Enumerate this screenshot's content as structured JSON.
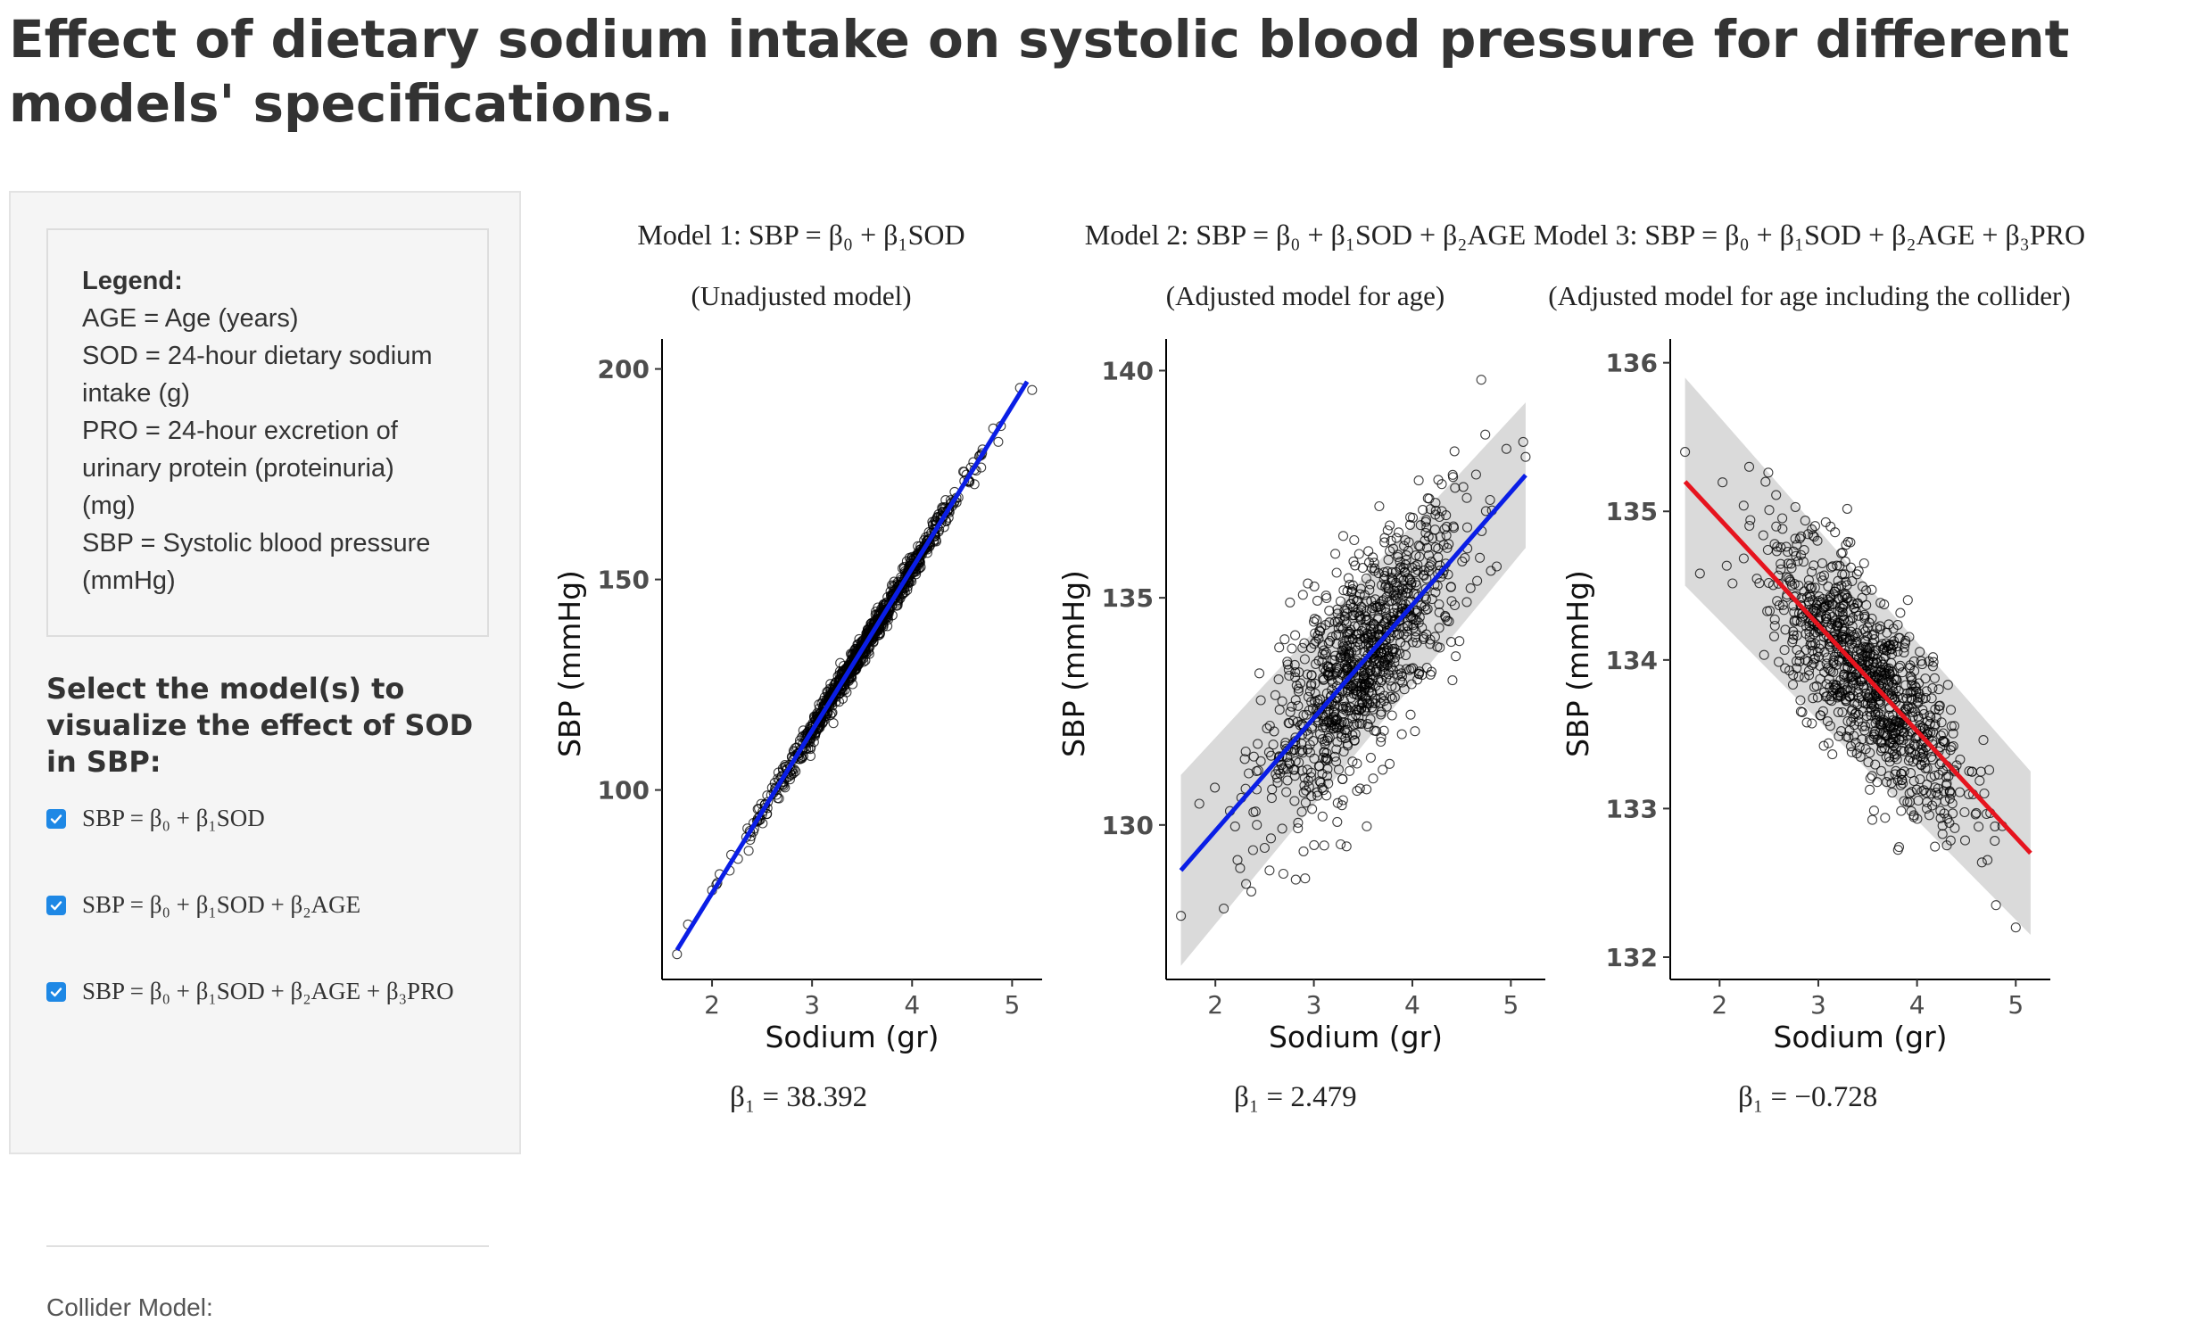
{
  "page": {
    "title": "Effect of dietary sodium intake on systolic blood pressure for different models' specifications."
  },
  "sidebar": {
    "legend": {
      "heading": "Legend:",
      "lines": [
        "AGE = Age (years)",
        "SOD = 24-hour dietary sodium",
        "intake (g)",
        "PRO = 24-hour excretion of",
        "urinary protein (proteinuria)",
        "(mg)",
        "SBP = Systolic blood pressure",
        "(mmHg)"
      ]
    },
    "select_heading": "Select the model(s) to visualize the effect of SOD in SBP:",
    "checkboxes": [
      {
        "label": "SBP = β₀ + β₁SOD",
        "checked": true
      },
      {
        "label": "SBP = β₀ + β₁SOD + β₂AGE",
        "checked": true
      },
      {
        "label": "SBP = β₀ + β₁SOD + β₂AGE + β₃PRO",
        "checked": true
      }
    ],
    "collider_label": "Collider Model:"
  },
  "colors": {
    "checkbox": "#1e88e5",
    "model1_line": "#0a1ee6",
    "model2_line": "#0a1ee6",
    "model3_line": "#e6141e",
    "ribbon": "#d4d4d4"
  },
  "chart_data": [
    {
      "type": "scatter",
      "title": "Model 1: SBP = β₀ + β₁SOD",
      "subtitle": "(Unadjusted model)",
      "xlabel": "Sodium (gr)",
      "ylabel": "SBP (mmHg)",
      "xlim": [
        1.5,
        5.3
      ],
      "ylim": [
        55,
        205
      ],
      "xticks": [
        2,
        3,
        4,
        5
      ],
      "yticks": [
        100,
        150,
        200
      ],
      "fit": {
        "x": [
          1.65,
          5.15
        ],
        "y": [
          62,
          197
        ]
      },
      "band_halfwidth": [
        0.3,
        0.3
      ],
      "point_count": 1000,
      "noise_sd": 1.6,
      "outliers": [
        [
          1.65,
          61
        ],
        [
          5.2,
          195
        ],
        [
          4.7,
          180
        ]
      ],
      "beta_label": "β₁ = 38.392"
    },
    {
      "type": "scatter",
      "title": "Model 2: SBP = β₀ + β₁SOD + β₂AGE",
      "subtitle": "(Adjusted model for age)",
      "xlabel": "Sodium (gr)",
      "ylabel": "SBP (mmHg)",
      "xlim": [
        1.5,
        5.35
      ],
      "ylim": [
        126.6,
        140.5
      ],
      "xticks": [
        2,
        3,
        4,
        5
      ],
      "yticks": [
        130,
        135,
        140
      ],
      "fit": {
        "x": [
          1.65,
          5.15
        ],
        "y": [
          129.0,
          137.7
        ]
      },
      "band_halfwidth": [
        2.1,
        1.6
      ],
      "point_count": 1000,
      "noise_sd": 1.1,
      "outliers": [
        [
          1.65,
          128.0
        ],
        [
          4.7,
          139.8
        ],
        [
          5.15,
          138.1
        ],
        [
          2.55,
          129.0
        ]
      ],
      "beta_label": "β₁ = 2.479"
    },
    {
      "type": "scatter",
      "title": "Model 3: SBP = β₀ + β₁SOD + β₂AGE + β₃PRO",
      "subtitle": "(Adjusted model for age including the collider)",
      "xlabel": "Sodium (gr)",
      "ylabel": "SBP (mmHg)",
      "xlim": [
        1.5,
        5.35
      ],
      "ylim": [
        131.85,
        136.1
      ],
      "xticks": [
        2,
        3,
        4,
        5
      ],
      "yticks": [
        132,
        133,
        134,
        135,
        136
      ],
      "fit": {
        "x": [
          1.65,
          5.15
        ],
        "y": [
          135.2,
          132.7
        ]
      },
      "band_halfwidth": [
        0.7,
        0.55
      ],
      "point_count": 1000,
      "noise_sd": 0.3,
      "outliers": [
        [
          1.65,
          135.4
        ],
        [
          5.0,
          132.2
        ],
        [
          4.8,
          132.35
        ],
        [
          2.3,
          135.3
        ]
      ],
      "beta_label": "β₁ = −0.728"
    }
  ]
}
